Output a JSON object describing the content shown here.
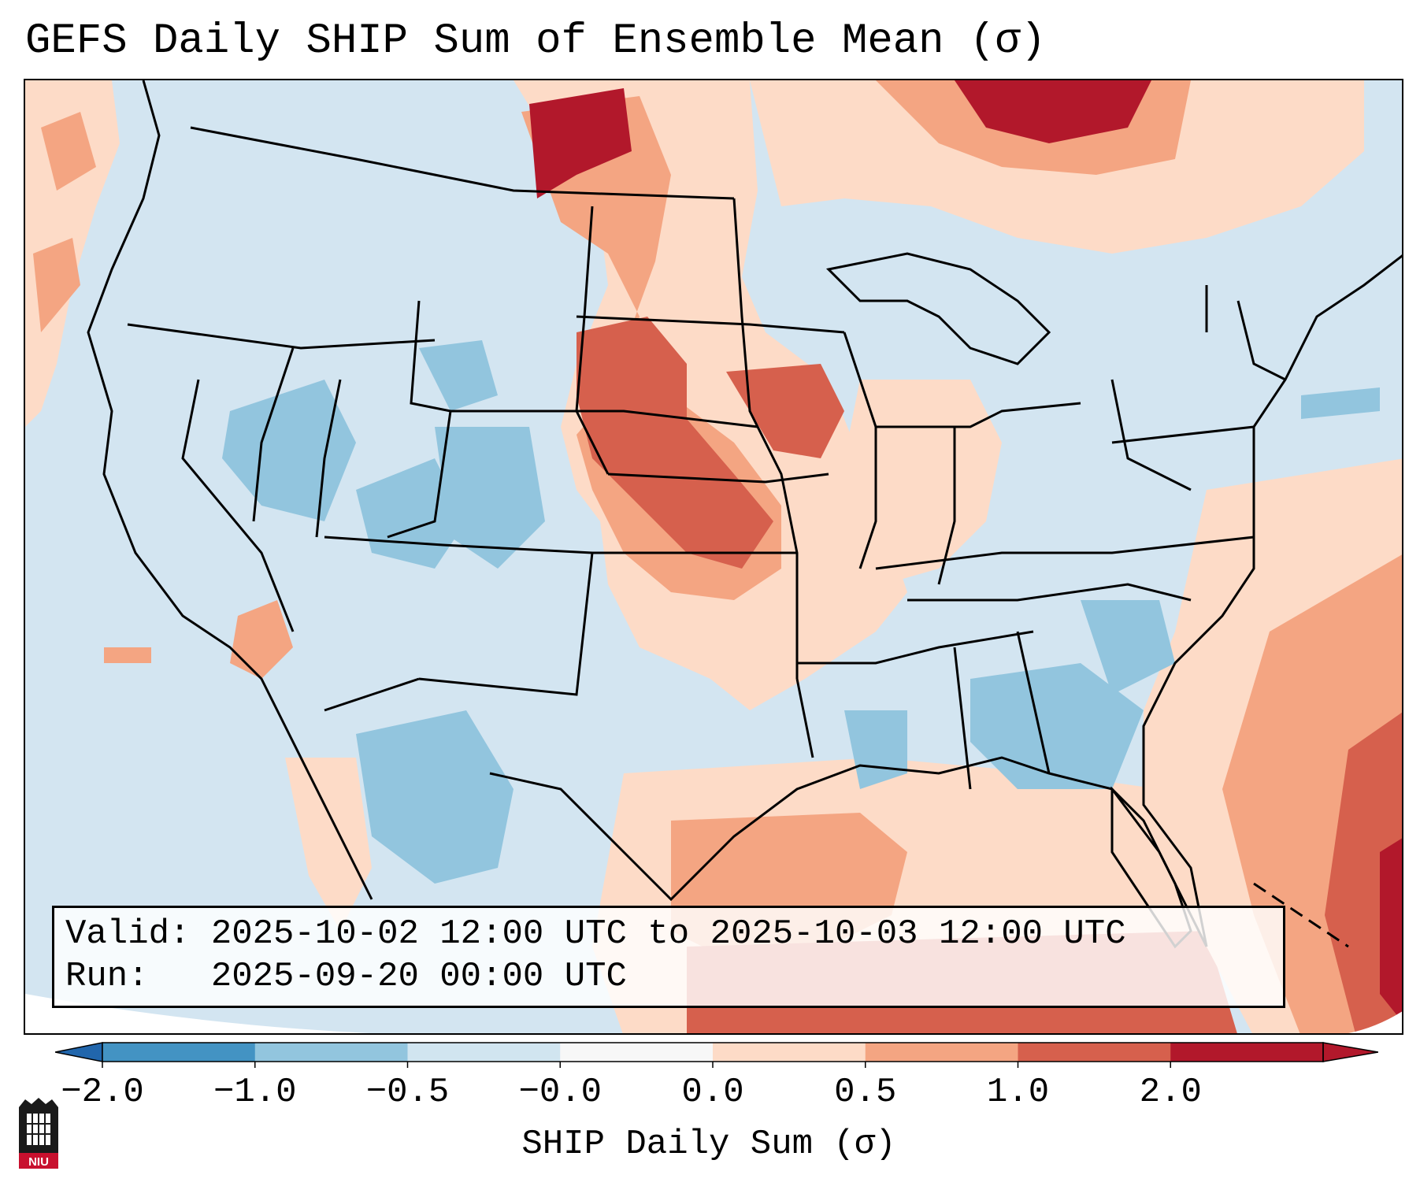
{
  "title": "GEFS Daily SHIP Sum of Ensemble Mean (σ)",
  "info": {
    "valid_line": "Valid: 2025-10-02 12:00 UTC to 2025-10-03 12:00 UTC",
    "run_line": "Run:   2025-09-20 00:00 UTC"
  },
  "colorbar": {
    "label": "SHIP Daily Sum (σ)",
    "ticks": [
      "−2.0",
      "−1.0",
      "−0.5",
      "−0.0",
      "0.0",
      "0.5",
      "1.0",
      "2.0"
    ],
    "colors": [
      "#4393c3",
      "#92c5de",
      "#d1e5f0",
      "#f7f7f7",
      "#fddbc7",
      "#f4a582",
      "#d6604d",
      "#b2182b"
    ],
    "extend_colors": {
      "low": "#2166ac",
      "high": "#b2182b"
    }
  },
  "map": {
    "background_color": "#d3e5f1",
    "region": "Contiguous United States",
    "highlight_colors": {
      "light_red": "#fddbc7",
      "red": "#f4a582",
      "dark_red": "#d6604d",
      "deep_red": "#b2182b",
      "blue": "#92c5de"
    }
  },
  "logo": {
    "text": "NIU"
  }
}
